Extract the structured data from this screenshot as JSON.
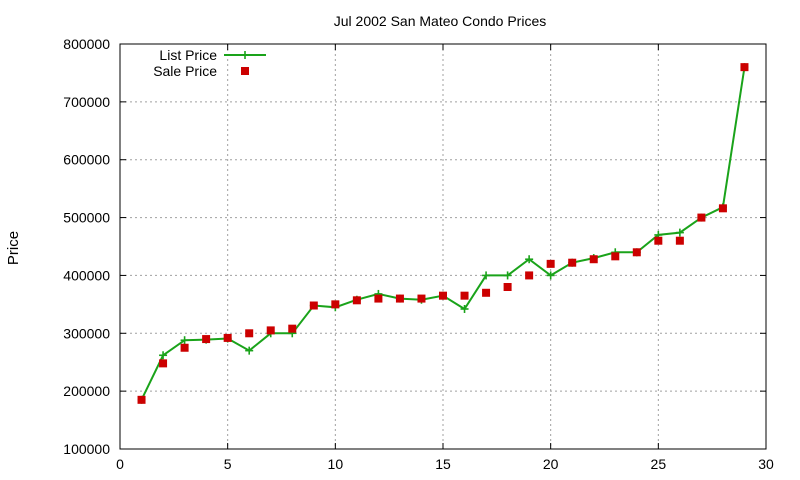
{
  "chart_data": {
    "type": "line",
    "title": "Jul 2002 San Mateo Condo Prices",
    "xlabel": "",
    "ylabel": "Price",
    "xlim": [
      0,
      30
    ],
    "ylim": [
      100000,
      800000
    ],
    "x_ticks": [
      0,
      5,
      10,
      15,
      20,
      25,
      30
    ],
    "y_ticks": [
      100000,
      200000,
      300000,
      400000,
      500000,
      600000,
      700000,
      800000
    ],
    "grid": true,
    "legend_position": "top-left",
    "x": [
      1,
      2,
      3,
      4,
      5,
      6,
      7,
      8,
      9,
      10,
      11,
      12,
      13,
      14,
      15,
      16,
      17,
      18,
      19,
      20,
      21,
      22,
      23,
      24,
      25,
      26,
      27,
      28,
      29
    ],
    "series": [
      {
        "name": "List Price",
        "style": "line-with-plus-markers",
        "color": "#1aa31a",
        "values": [
          185000,
          262000,
          288000,
          289000,
          291000,
          270000,
          300000,
          300000,
          348000,
          345000,
          358000,
          368000,
          360000,
          358000,
          365000,
          342000,
          400000,
          400000,
          428000,
          400000,
          422000,
          430000,
          440000,
          440000,
          470000,
          474000,
          500000,
          518000,
          760000
        ]
      },
      {
        "name": "Sale Price",
        "style": "square-markers",
        "color": "#cc0000",
        "values": [
          185000,
          248000,
          275000,
          290000,
          292000,
          300000,
          305000,
          308000,
          348000,
          350000,
          357000,
          360000,
          360000,
          360000,
          365000,
          365000,
          370000,
          380000,
          400000,
          420000,
          422000,
          428000,
          433000,
          440000,
          460000,
          460000,
          500000,
          516000,
          760000
        ]
      }
    ]
  }
}
